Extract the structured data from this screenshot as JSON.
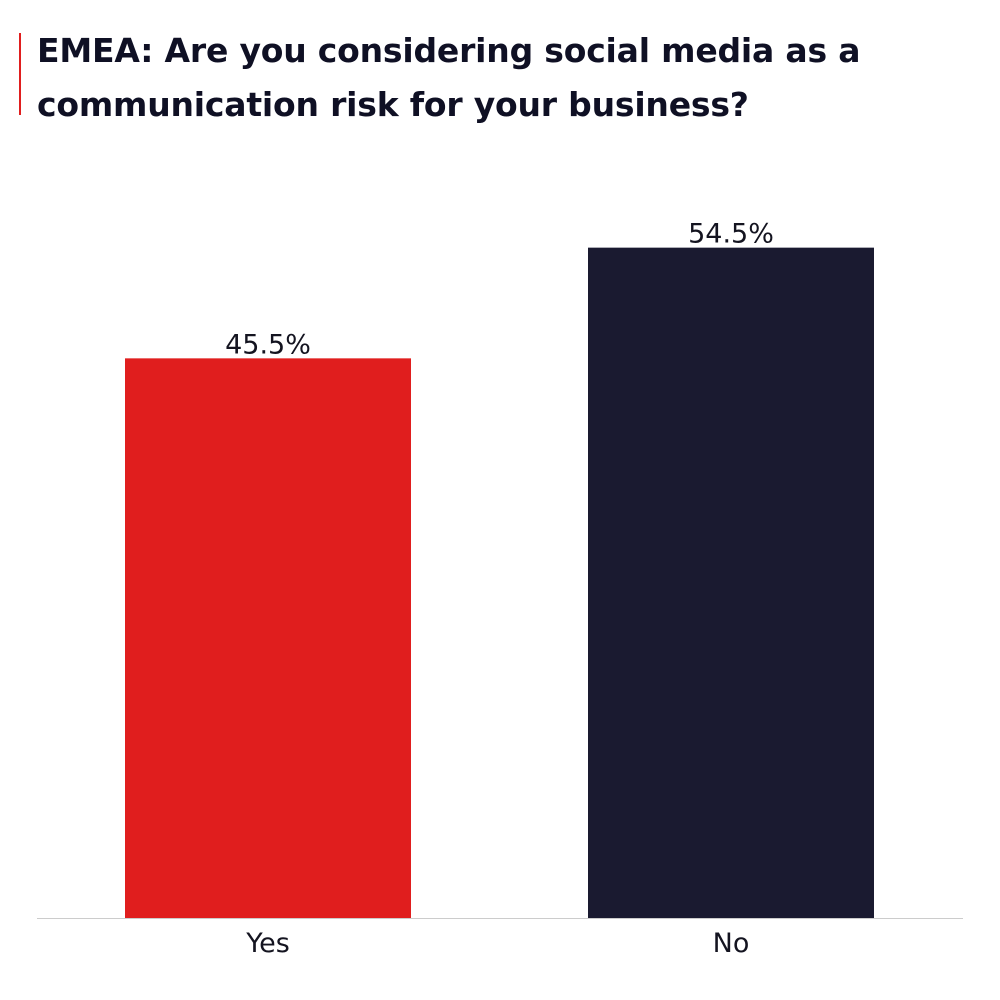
{
  "colors": {
    "accent": "#e01e1e",
    "title": "#0f1024",
    "yes_bar": "#e01e1e",
    "no_bar": "#1a1a30",
    "axis": "#cccccc"
  },
  "chart_data": {
    "type": "bar",
    "title": "EMEA: Are you considering social media as a communication risk for your business?",
    "xlabel": "",
    "ylabel": "",
    "categories": [
      "Yes",
      "No"
    ],
    "values": [
      45.5,
      54.5
    ],
    "value_labels": [
      "45.5%",
      "54.5%"
    ],
    "bar_colors": [
      "#e01e1e",
      "#1a1a30"
    ],
    "ylim": [
      0,
      60
    ],
    "grid": false,
    "legend": "none"
  }
}
